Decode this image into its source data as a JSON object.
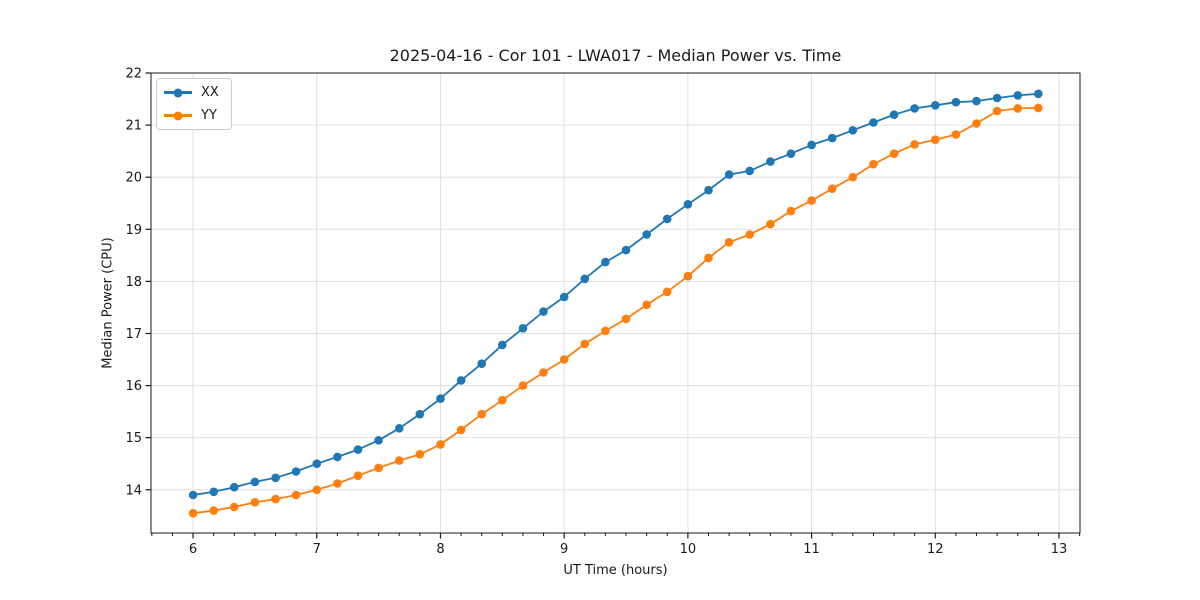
{
  "chart_data": {
    "type": "line",
    "title": "2025-04-16 - Cor 101 - LWA017 - Median Power vs. Time",
    "xlabel": "UT Time (hours)",
    "ylabel": "Median Power (CPU)",
    "xlim": [
      5.66,
      13.17
    ],
    "ylim": [
      13.17,
      22.0
    ],
    "x_ticks": [
      6,
      7,
      8,
      9,
      10,
      11,
      12,
      13
    ],
    "y_ticks": [
      14,
      15,
      16,
      17,
      18,
      19,
      20,
      21,
      22
    ],
    "x_minor_tick_step_hours": 0.1667,
    "grid": true,
    "grid_color": "#e0e0e0",
    "axis_color": "#1a1a1a",
    "legend_position": "upper left",
    "x": [
      6.0,
      6.167,
      6.333,
      6.5,
      6.667,
      6.833,
      7.0,
      7.167,
      7.333,
      7.5,
      7.667,
      7.833,
      8.0,
      8.167,
      8.333,
      8.5,
      8.667,
      8.833,
      9.0,
      9.167,
      9.333,
      9.5,
      9.667,
      9.833,
      10.0,
      10.167,
      10.333,
      10.5,
      10.667,
      10.833,
      11.0,
      11.167,
      11.333,
      11.5,
      11.667,
      11.833,
      12.0,
      12.167,
      12.333,
      12.5,
      12.667,
      12.833
    ],
    "series": [
      {
        "name": "XX",
        "color": "#1f77b4",
        "marker": "circle",
        "values": [
          13.9,
          13.96,
          14.05,
          14.15,
          14.23,
          14.35,
          14.5,
          14.63,
          14.77,
          14.95,
          15.18,
          15.45,
          15.75,
          16.1,
          16.42,
          16.78,
          17.1,
          17.42,
          17.7,
          18.05,
          18.37,
          18.6,
          18.9,
          19.2,
          19.48,
          19.75,
          20.05,
          20.12,
          20.3,
          20.45,
          20.62,
          20.75,
          20.9,
          21.05,
          21.2,
          21.32,
          21.38,
          21.44,
          21.46,
          21.52,
          21.57,
          21.6
        ]
      },
      {
        "name": "YY",
        "color": "#ff7f0e",
        "marker": "circle",
        "values": [
          13.55,
          13.6,
          13.67,
          13.76,
          13.82,
          13.9,
          14.0,
          14.12,
          14.27,
          14.42,
          14.56,
          14.68,
          14.87,
          15.15,
          15.45,
          15.72,
          16.0,
          16.25,
          16.5,
          16.8,
          17.05,
          17.28,
          17.55,
          17.8,
          18.1,
          18.45,
          18.75,
          18.9,
          19.1,
          19.35,
          19.55,
          19.78,
          20.0,
          20.25,
          20.45,
          20.63,
          20.72,
          20.82,
          21.03,
          21.27,
          21.32,
          21.33
        ]
      }
    ]
  }
}
